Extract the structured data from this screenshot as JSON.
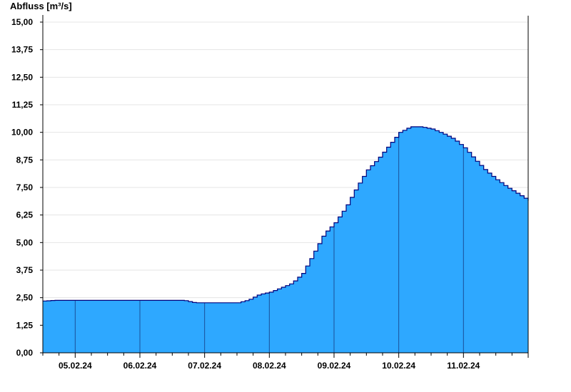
{
  "chart_data": {
    "type": "area",
    "ylabel": "Abfluss [m³/s]",
    "xlabel": "",
    "title": "",
    "x_unit": "hours",
    "ylim": [
      0,
      15
    ],
    "yticks": [
      "0,00",
      "1,25",
      "2,50",
      "3,75",
      "5,00",
      "6,25",
      "7,50",
      "8,75",
      "10,00",
      "11,25",
      "12,50",
      "13,75",
      "15,00"
    ],
    "ytick_values": [
      0,
      1.25,
      2.5,
      3.75,
      5,
      6.25,
      7.5,
      8.75,
      10,
      11.25,
      12.5,
      13.75,
      15
    ],
    "xticks": [
      "05.02.24",
      "06.02.24",
      "07.02.24",
      "08.02.24",
      "09.02.24",
      "10.02.24",
      "11.02.24"
    ],
    "grid": true,
    "colors": {
      "fill": "#2ea8ff",
      "line": "#00007a",
      "grid": "#e4e4e4",
      "axis": "#000000",
      "day_divider": "#1a4f9a"
    },
    "series": [
      {
        "x": [
          "04.02.24 12:00",
          "04.02.24 16:00",
          "05.02.24 00:00",
          "06.02.24 00:00",
          "06.02.24 16:00",
          "06.02.24 20:00",
          "07.02.24 00:00",
          "07.02.24 12:00",
          "07.02.24 16:00",
          "07.02.24 20:00",
          "08.02.24 00:00",
          "08.02.24 04:00",
          "08.02.24 08:00",
          "08.02.24 12:00",
          "08.02.24 16:00",
          "08.02.24 20:00",
          "09.02.24 00:00",
          "09.02.24 04:00",
          "09.02.24 08:00",
          "09.02.24 12:00",
          "09.02.24 16:00",
          "09.02.24 20:00",
          "10.02.24 00:00",
          "10.02.24 04:00",
          "10.02.24 08:00",
          "10.02.24 12:00",
          "10.02.24 16:00",
          "10.02.24 20:00",
          "11.02.24 00:00",
          "11.02.24 04:00",
          "11.02.24 08:00",
          "11.02.24 12:00",
          "11.02.24 16:00",
          "11.02.24 20:00",
          "12.02.24 00:00"
        ],
        "values": [
          2.35,
          2.38,
          2.38,
          2.38,
          2.38,
          2.27,
          2.27,
          2.27,
          2.4,
          2.65,
          2.75,
          2.95,
          3.15,
          3.6,
          4.5,
          5.4,
          5.9,
          6.6,
          7.5,
          8.3,
          8.8,
          9.4,
          10.0,
          10.25,
          10.25,
          10.15,
          9.95,
          9.7,
          9.3,
          8.75,
          8.25,
          7.85,
          7.5,
          7.2,
          6.9
        ]
      }
    ]
  }
}
